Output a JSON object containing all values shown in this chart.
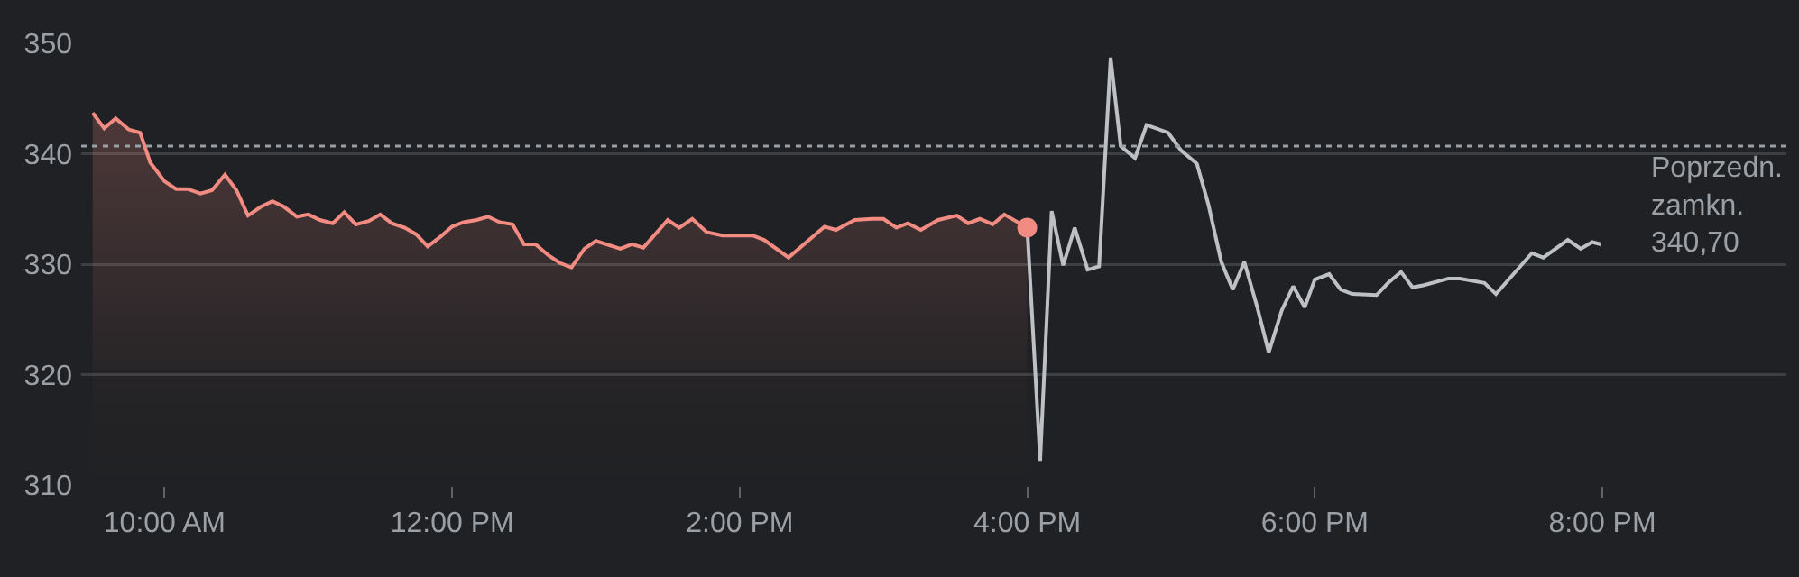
{
  "chart_data": {
    "type": "line",
    "xlim": [
      9.42,
      21.28
    ],
    "ylim": [
      310,
      350
    ],
    "yticks": [
      310,
      320,
      330,
      340,
      350
    ],
    "xticks": [
      {
        "value": 10,
        "label": "10:00 AM"
      },
      {
        "value": 12,
        "label": "12:00 PM"
      },
      {
        "value": 14,
        "label": "2:00 PM"
      },
      {
        "value": 16,
        "label": "4:00 PM"
      },
      {
        "value": 18,
        "label": "6:00 PM"
      },
      {
        "value": 20,
        "label": "8:00 PM"
      }
    ],
    "grid": "y",
    "line_style": "solid",
    "ref_lines": [
      {
        "axis": "y",
        "value": 340.7,
        "label": "Poprzedn. zamkn. 340,70",
        "color": "#9aa0a6",
        "line_style": "dotted"
      }
    ],
    "series": [
      {
        "type": "area",
        "color": "#f28b82",
        "x": [
          9.5,
          9.58,
          9.66,
          9.75,
          9.83,
          9.9,
          10.0,
          10.08,
          10.16,
          10.25,
          10.33,
          10.42,
          10.5,
          10.58,
          10.67,
          10.75,
          10.83,
          10.92,
          11.0,
          11.08,
          11.17,
          11.25,
          11.33,
          11.42,
          11.5,
          11.58,
          11.67,
          11.75,
          11.83,
          11.92,
          12.0,
          12.08,
          12.17,
          12.25,
          12.33,
          12.42,
          12.5,
          12.58,
          12.67,
          12.75,
          12.83,
          12.92,
          13.0,
          13.12,
          13.17,
          13.25,
          13.33,
          13.5,
          13.58,
          13.67,
          13.77,
          13.88,
          14.09,
          14.17,
          14.34,
          14.59,
          14.67,
          14.8,
          14.92,
          15.0,
          15.09,
          15.17,
          15.26,
          15.38,
          15.51,
          15.59,
          15.67,
          15.76,
          15.84,
          16.0
        ],
        "values": [
          343.7,
          342.3,
          343.2,
          342.2,
          341.9,
          339.2,
          337.5,
          336.8,
          336.8,
          336.4,
          336.7,
          338.1,
          336.7,
          334.4,
          335.2,
          335.7,
          335.2,
          334.3,
          334.5,
          334.0,
          333.7,
          334.7,
          333.6,
          333.9,
          334.5,
          333.7,
          333.3,
          332.7,
          331.6,
          332.5,
          333.4,
          333.8,
          334.0,
          334.3,
          333.8,
          333.6,
          331.8,
          331.8,
          330.8,
          330.1,
          329.7,
          331.4,
          332.1,
          331.6,
          331.4,
          331.8,
          331.5,
          334.0,
          333.3,
          334.1,
          332.9,
          332.6,
          332.6,
          332.2,
          330.6,
          333.4,
          333.1,
          334.0,
          334.1,
          334.1,
          333.3,
          333.7,
          333.1,
          334.0,
          334.4,
          333.7,
          334.1,
          333.6,
          334.5,
          333.3
        ]
      },
      {
        "color": "#bdc1c6",
        "x": [
          16.0,
          16.09,
          16.17,
          16.25,
          16.33,
          16.42,
          16.5,
          16.58,
          16.65,
          16.75,
          16.83,
          16.98,
          17.07,
          17.18,
          17.26,
          17.35,
          17.43,
          17.51,
          17.6,
          17.68,
          17.77,
          17.85,
          17.93,
          18.0,
          18.1,
          18.18,
          18.26,
          18.43,
          18.51,
          18.6,
          18.68,
          18.76,
          18.93,
          19.01,
          19.18,
          19.26,
          19.51,
          19.59,
          19.76,
          19.85,
          19.93,
          19.99
        ],
        "values": [
          333.3,
          312.2,
          334.8,
          329.9,
          333.3,
          329.5,
          329.8,
          348.7,
          340.7,
          339.6,
          342.6,
          341.9,
          340.3,
          339.1,
          335.4,
          330.2,
          327.7,
          330.2,
          326.1,
          322.0,
          325.8,
          328.0,
          326.1,
          328.6,
          329.1,
          327.7,
          327.3,
          327.2,
          328.3,
          329.3,
          327.9,
          328.1,
          328.7,
          328.7,
          328.3,
          327.3,
          331.0,
          330.6,
          332.2,
          331.4,
          332.0,
          331.8
        ]
      },
      {
        "type": "scatter",
        "color": "#f28b82",
        "marker": "circle",
        "x": [
          16.0
        ],
        "values": [
          333.3
        ]
      }
    ]
  }
}
